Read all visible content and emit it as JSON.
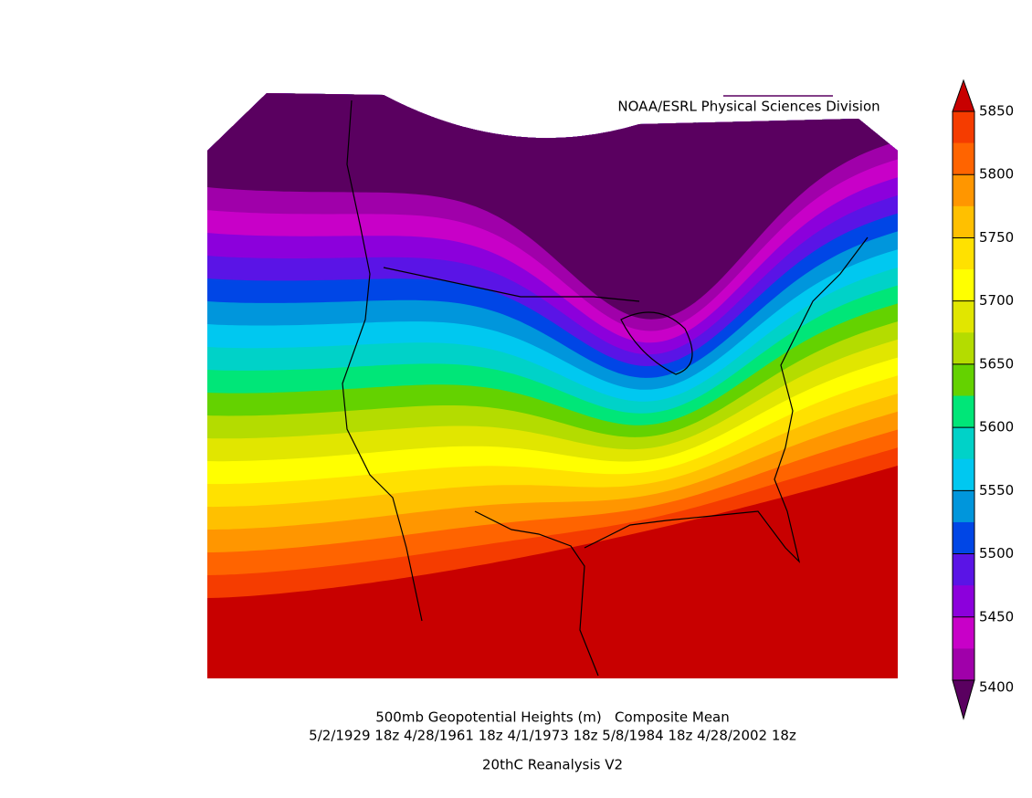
{
  "credit": "NOAA/ESRL Physical Sciences Division",
  "title": "500mb Geopotential Heights (m)   Composite Mean",
  "dates": "5/2/1929 18z 4/28/1961 18z 4/1/1973 18z 5/8/1984 18z 4/28/2002 18z",
  "source": "20thC Reanalysis V2",
  "colorbar": {
    "lim": [
      5400,
      5850
    ],
    "ticks": [
      5400,
      5450,
      5500,
      5550,
      5600,
      5650,
      5700,
      5750,
      5800,
      5850
    ],
    "over_color": "#c80000",
    "under_color": "#5a0060",
    "colors": [
      "#f53c00",
      "#ff6400",
      "#ff9600",
      "#ffc000",
      "#ffe100",
      "#ffff00",
      "#e1e600",
      "#b4dc00",
      "#64d200",
      "#00e678",
      "#00d2c8",
      "#00c8f0",
      "#0096dc",
      "#0046e6",
      "#5a14e6",
      "#8c00dc",
      "#c800c8",
      "#a000aa"
    ]
  }
}
